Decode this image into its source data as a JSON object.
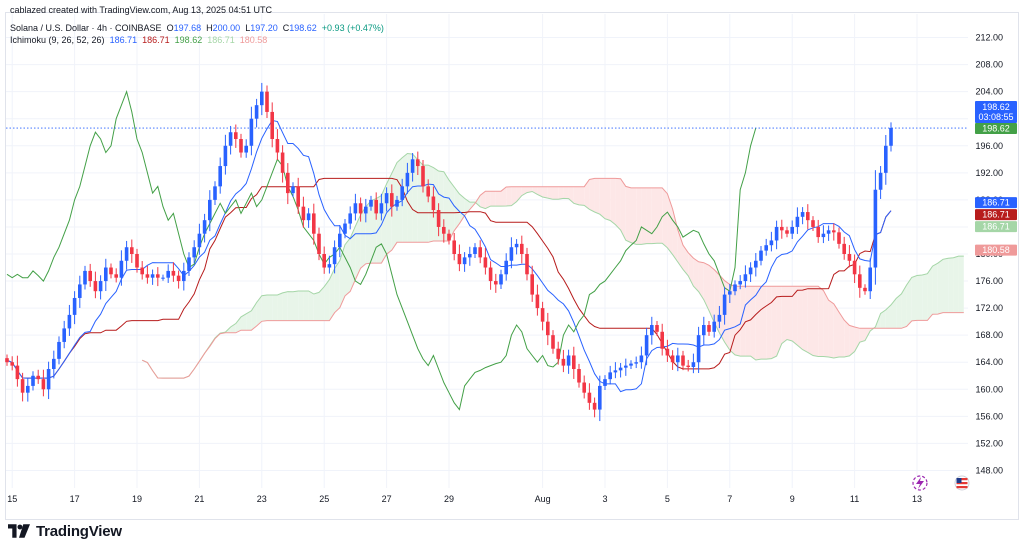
{
  "header": {
    "credit": "cablazed created with TradingView.com, Aug 13, 2025 04:51 UTC",
    "symbol": "Solana / U.S. Dollar · 4h · COINBASE",
    "o_label": "O",
    "o_value": "197.68",
    "h_label": "H",
    "h_value": "200.00",
    "l_label": "L",
    "l_value": "197.20",
    "c_label": "C",
    "c_value": "198.62",
    "change": "+0.93 (+0.47%)",
    "indicator_name": "Ichimoku (9, 26, 52, 26)",
    "indicator_values": [
      "186.71",
      "186.71",
      "198.62",
      "186.71",
      "180.58"
    ]
  },
  "price_tags": {
    "last_price": "198.62",
    "countdown": "03:08:55",
    "lagging_span": "198.62",
    "tenkan": "186.71",
    "kijun": "186.71",
    "span_a": "186.71",
    "span_b": "180.58"
  },
  "colors": {
    "up": "#2962ff",
    "down": "#f23645",
    "tenkan": "#2962ff",
    "kijun": "#b71c1c",
    "lagging": "#43a047",
    "cloud_bull": "#e8f5e9",
    "cloud_bear": "#fde7e7",
    "span_a": "#a5d6a7",
    "span_b": "#ef9a9a"
  },
  "icons": [
    "tradingview-logo-icon",
    "flag-icon",
    "lightning-icon"
  ],
  "footer": {
    "brand": "TradingView"
  },
  "chart_data": {
    "type": "candlestick",
    "title": "Solana / U.S. Dollar · 4h · COINBASE",
    "ylim": [
      146,
      214
    ],
    "y_ticks": [
      212,
      208,
      204,
      200,
      196,
      192,
      188,
      184,
      180,
      176,
      172,
      168,
      164,
      160,
      156,
      152,
      148
    ],
    "y_tick_labels": [
      "212.00",
      "208.00",
      "204.00",
      "200.00",
      "196.00",
      "192.00",
      "188.00",
      "184.00",
      "180.00",
      "176.00",
      "172.00",
      "168.00",
      "164.00",
      "160.00",
      "156.00",
      "152.00",
      "148.00"
    ],
    "x_tick_labels": [
      "15",
      "17",
      "19",
      "21",
      "23",
      "25",
      "27",
      "29",
      "Aug",
      "3",
      "5",
      "7",
      "9",
      "11",
      "13"
    ],
    "x_tick_index": [
      1,
      13,
      25,
      37,
      49,
      61,
      73,
      85,
      103,
      115,
      127,
      139,
      151,
      163,
      175
    ],
    "grid": true,
    "candles_close": [
      164,
      163.5,
      161.5,
      159.5,
      160.5,
      162,
      161.5,
      160,
      163,
      164.5,
      167,
      169,
      171,
      173.5,
      175.5,
      177.5,
      176,
      174.5,
      176,
      178,
      177,
      176.5,
      179,
      181,
      180,
      178,
      177,
      176.5,
      177,
      176.5,
      176.5,
      177.5,
      176.8,
      176,
      177.5,
      179.5,
      181,
      183,
      185,
      188,
      190,
      193,
      196,
      198,
      197,
      195,
      196,
      200,
      202,
      204,
      201,
      197,
      195,
      192,
      189,
      190,
      187,
      185,
      186,
      183,
      180,
      178,
      178.5,
      181,
      183,
      184.5,
      186,
      187.5,
      186,
      187,
      188,
      186,
      187.5,
      189,
      187,
      188,
      190,
      192,
      194,
      193,
      190,
      188.5,
      186.5,
      184,
      183,
      182,
      180,
      178.5,
      179.5,
      180,
      181,
      179.5,
      178,
      176,
      175.5,
      177,
      179,
      181,
      181.5,
      180,
      177,
      174,
      172,
      170,
      168,
      166,
      164.5,
      163.5,
      165,
      163,
      161,
      159.5,
      158,
      157,
      160.5,
      161.5,
      162.5,
      162.8,
      163.2,
      163.5,
      163.8,
      164,
      165,
      168,
      169.5,
      168.5,
      166,
      165,
      164,
      165,
      163.5,
      163.3,
      164,
      168,
      169.5,
      168.5,
      170,
      171,
      174,
      174.5,
      175.5,
      176,
      177,
      178,
      179,
      180.5,
      181.3,
      182,
      184,
      183.5,
      183,
      184,
      185.5,
      186.2,
      185,
      184,
      182.5,
      183,
      183.5,
      183.2,
      181.5,
      180,
      179,
      177,
      175,
      174.5,
      178,
      189.5,
      192,
      196,
      198.62
    ]
  }
}
